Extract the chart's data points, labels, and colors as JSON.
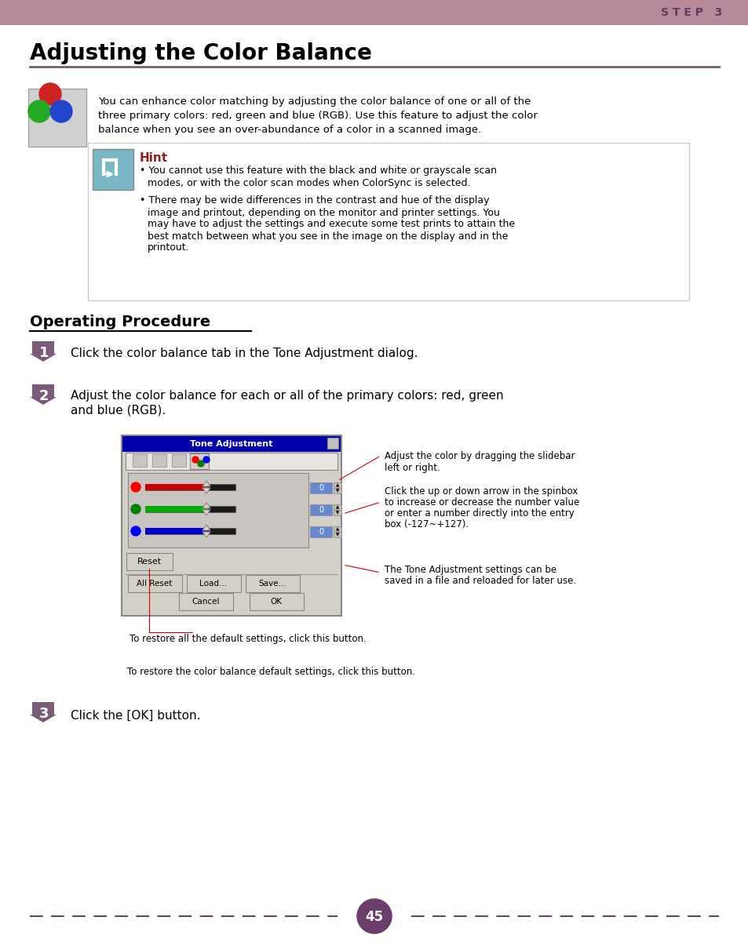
{
  "bg_color": "#ffffff",
  "header_color": "#b8899a",
  "header_text": "S T E P   3",
  "header_text_color": "#5c3d5c",
  "title": "Adjusting the Color Balance",
  "title_color": "#000000",
  "divider_color": "#7a5c7a",
  "intro_text": "You can enhance color matching by adjusting the color balance of one or all of the\nthree primary colors: red, green and blue (RGB). Use this feature to adjust the color\nbalance when you see an over-abundance of a color in a scanned image.",
  "hint_title": "Hint",
  "hint_title_color": "#8b0000",
  "hint_box_color": "#7ab8c8",
  "hint_bullets": [
    "You cannot use this feature with the black and white or grayscale scan\nmodes, or with the color scan modes when ColorSync is selected.",
    "There may be wide differences in the contrast and hue of the display\nimage and printout, depending on the monitor and printer settings. You\nmay have to adjust the settings and execute some test prints to attain the\nbest match between what you see in the image on the display and in the\nprintout."
  ],
  "op_title": "Operating Procedure",
  "step1_text": "Click the color balance tab in the Tone Adjustment dialog.",
  "step2_text": "Adjust the color balance for each or all of the primary colors: red, green\nand blue (RGB).",
  "step3_text": "Click the [OK] button.",
  "annotation1": "Adjust the color by dragging the slidebar\nleft or right.",
  "annotation2": "Click the up or down arrow in the spinbox\nto increase or decrease the number value\nor enter a number directly into the entry\nbox (-127~+127).",
  "annotation3": "The Tone Adjustment settings can be\nsaved in a file and reloaded for later use.",
  "annotation4": "To restore all the default settings, click this button.",
  "annotation5": "To restore the color balance default settings, click this button.",
  "page_number": "45",
  "page_circle_color": "#6b3d6b",
  "step_arrow_color": "#7a5c7a",
  "step_number_color": "#ffffff"
}
